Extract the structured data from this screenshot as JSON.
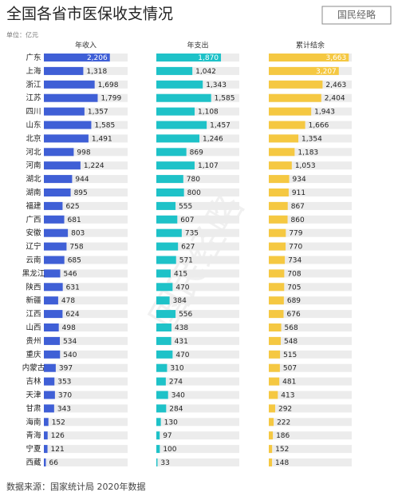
{
  "chart_data": {
    "type": "bar",
    "title": "全国各省市医保收支情况",
    "logo": "国民经略",
    "unit": "单位：亿元",
    "source": "数据来源：国家统计局 2020年数据",
    "categories": [
      "广东",
      "上海",
      "浙江",
      "江苏",
      "四川",
      "山东",
      "北京",
      "河北",
      "河南",
      "湖北",
      "湖南",
      "福建",
      "广西",
      "安徽",
      "辽宁",
      "云南",
      "黑龙江",
      "陕西",
      "新疆",
      "江西",
      "山西",
      "贵州",
      "重庆",
      "内蒙古",
      "吉林",
      "天津",
      "甘肃",
      "海南",
      "青海",
      "宁夏",
      "西藏"
    ],
    "series": [
      {
        "name": "年收入",
        "color": "#3f5fd6",
        "xlim": [
          0,
          2800
        ],
        "values": [
          2206,
          1318,
          1698,
          1799,
          1357,
          1585,
          1491,
          998,
          1224,
          944,
          895,
          625,
          681,
          803,
          758,
          685,
          546,
          631,
          478,
          624,
          498,
          534,
          540,
          397,
          353,
          370,
          343,
          152,
          126,
          121,
          66
        ],
        "value_labels": [
          "2,206",
          "1,318",
          "1,698",
          "1,799",
          "1,357",
          "1,585",
          "1,491",
          "998",
          "1,224",
          "944",
          "895",
          "625",
          "681",
          "803",
          "758",
          "685",
          "546",
          "631",
          "478",
          "624",
          "498",
          "534",
          "540",
          "397",
          "353",
          "370",
          "343",
          "152",
          "126",
          "121",
          "66"
        ]
      },
      {
        "name": "年支出",
        "color": "#1ec2c8",
        "xlim": [
          0,
          2400
        ],
        "values": [
          1870,
          1042,
          1343,
          1585,
          1108,
          1457,
          1246,
          869,
          1107,
          780,
          800,
          555,
          607,
          735,
          627,
          571,
          415,
          470,
          384,
          556,
          438,
          431,
          470,
          310,
          274,
          340,
          284,
          130,
          97,
          100,
          33
        ],
        "value_labels": [
          "1,870",
          "1,042",
          "1,343",
          "1,585",
          "1,108",
          "1,457",
          "1,246",
          "869",
          "1,107",
          "780",
          "800",
          "555",
          "607",
          "735",
          "627",
          "571",
          "415",
          "470",
          "384",
          "556",
          "438",
          "431",
          "470",
          "310",
          "274",
          "340",
          "284",
          "130",
          "97",
          "100",
          "33"
        ]
      },
      {
        "name": "累计结余",
        "color": "#f5c842",
        "xlim": [
          0,
          3800
        ],
        "values": [
          3663,
          3207,
          2463,
          2404,
          1943,
          1666,
          1354,
          1183,
          1053,
          934,
          911,
          867,
          860,
          779,
          770,
          734,
          708,
          705,
          689,
          676,
          568,
          548,
          515,
          507,
          481,
          413,
          292,
          222,
          186,
          152,
          148
        ],
        "value_labels": [
          "3,663",
          "3,207",
          "2,463",
          "2,404",
          "1,943",
          "1,666",
          "1,354",
          "1,183",
          "1,053",
          "934",
          "911",
          "867",
          "860",
          "779",
          "770",
          "734",
          "708",
          "705",
          "689",
          "676",
          "568",
          "548",
          "515",
          "507",
          "481",
          "413",
          "292",
          "222",
          "186",
          "152",
          "148"
        ]
      }
    ]
  }
}
